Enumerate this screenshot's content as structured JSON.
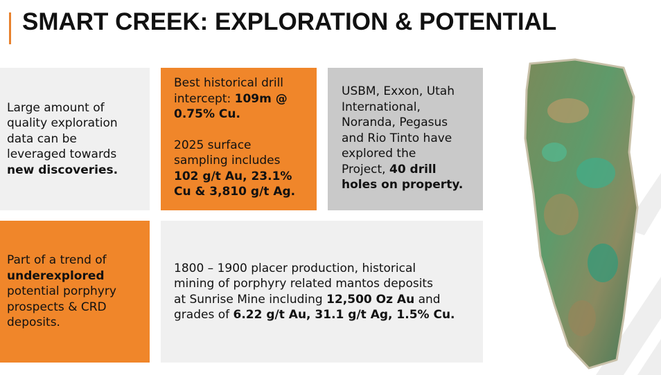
{
  "header": {
    "title": "SMART CREEK: EXPLORATION & POTENTIAL"
  },
  "boxes": [
    {
      "paragraphs": [
        [
          [
            "Large amount of"
          ],
          [
            "quality exploration"
          ],
          [
            "data can be"
          ],
          [
            "leveraged towards"
          ],
          [
            {
              "text": "new discoveries.",
              "bold": true
            }
          ]
        ]
      ]
    },
    {
      "paragraphs": [
        [
          [
            "Best historical drill"
          ],
          [
            "intercept: ",
            {
              "text": "109m @",
              "bold": true
            }
          ],
          [
            {
              "text": "0.75% Cu.",
              "bold": true
            }
          ]
        ],
        [
          [
            "2025 surface"
          ],
          [
            "sampling includes"
          ],
          [
            {
              "text": "102 g/t Au, 23.1%",
              "bold": true
            }
          ],
          [
            {
              "text": "Cu & 3,810 g/t Ag.",
              "bold": true
            }
          ]
        ]
      ]
    },
    {
      "paragraphs": [
        [
          [
            "USBM, Exxon, Utah"
          ],
          [
            "International,"
          ],
          [
            "Noranda, Pegasus"
          ],
          [
            "and Rio Tinto have"
          ],
          [
            "explored the"
          ],
          [
            "Project, ",
            {
              "text": "40 drill",
              "bold": true
            }
          ],
          [
            {
              "text": "holes on property.",
              "bold": true
            }
          ]
        ]
      ]
    },
    {
      "paragraphs": [
        [
          [
            "Part of a trend of"
          ],
          [
            {
              "text": "underexplored",
              "bold": true
            }
          ],
          [
            "potential porphyry"
          ],
          [
            "prospects & CRD"
          ],
          [
            "deposits."
          ]
        ]
      ]
    },
    {
      "paragraphs": [
        [
          [
            "1800 – 1900 placer production, historical"
          ],
          [
            "mining of porphyry related mantos deposits"
          ],
          [
            "at Sunrise Mine including ",
            {
              "text": "12,500 Oz Au",
              "bold": true
            },
            " and"
          ],
          [
            "grades of ",
            {
              "text": "6.22 g/t Au, 31.1 g/t Ag, 1.5% Cu.",
              "bold": true
            }
          ]
        ]
      ]
    }
  ]
}
